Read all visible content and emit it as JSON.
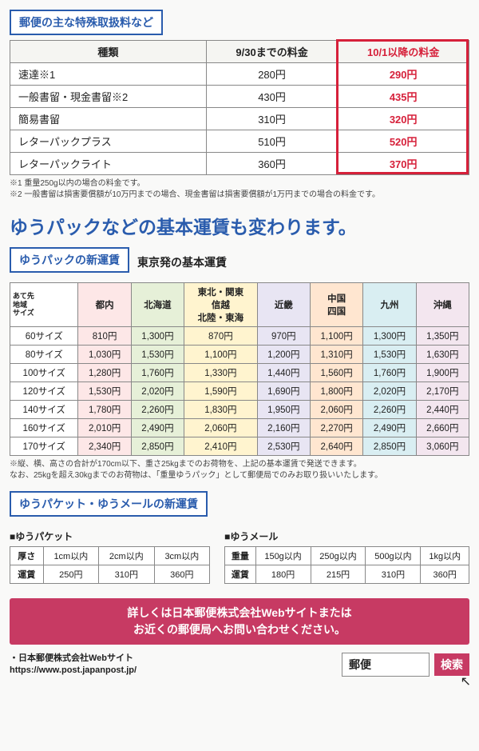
{
  "section1": {
    "title": "郵便の主な特殊取扱料など",
    "headers": [
      "種類",
      "9/30までの料金",
      "10/1以降の料金"
    ],
    "rows": [
      {
        "label": "速達※1",
        "old": "280円",
        "new": "290円"
      },
      {
        "label": "一般書留・現金書留※2",
        "old": "430円",
        "new": "435円"
      },
      {
        "label": "簡易書留",
        "old": "310円",
        "new": "320円"
      },
      {
        "label": "レターパックプラス",
        "old": "510円",
        "new": "520円"
      },
      {
        "label": "レターパックライト",
        "old": "360円",
        "new": "370円"
      }
    ],
    "note1": "※1 重量250g以内の場合の料金です。",
    "note2": "※2 一般書留は損害要償額が10万円までの場合、現金書留は損害要償額が1万円までの場合の料金です。"
  },
  "headline": "ゆうパックなどの基本運賃も変わります。",
  "section2": {
    "title": "ゆうパックの新運賃",
    "caption": "東京発の基本運賃",
    "corner_top": "あて先\n地域",
    "corner_bottom": "サイズ",
    "cols": [
      "都内",
      "北海道",
      "東北・関東\n信越\n北陸・東海",
      "近畿",
      "中国\n四国",
      "九州",
      "沖縄"
    ],
    "col_bg": [
      "#fde7e7",
      "#e6f0d8",
      "#fff4cf",
      "#e8e5f3",
      "#ffe6d0",
      "#d9eef2",
      "#f3e6ef"
    ],
    "sizes": [
      "60サイズ",
      "80サイズ",
      "100サイズ",
      "120サイズ",
      "140サイズ",
      "160サイズ",
      "170サイズ"
    ],
    "data": [
      [
        "810円",
        "1,300円",
        "870円",
        "970円",
        "1,100円",
        "1,300円",
        "1,350円"
      ],
      [
        "1,030円",
        "1,530円",
        "1,100円",
        "1,200円",
        "1,310円",
        "1,530円",
        "1,630円"
      ],
      [
        "1,280円",
        "1,760円",
        "1,330円",
        "1,440円",
        "1,560円",
        "1,760円",
        "1,900円"
      ],
      [
        "1,530円",
        "2,020円",
        "1,590円",
        "1,690円",
        "1,800円",
        "2,020円",
        "2,170円"
      ],
      [
        "1,780円",
        "2,260円",
        "1,830円",
        "1,950円",
        "2,060円",
        "2,260円",
        "2,440円"
      ],
      [
        "2,010円",
        "2,490円",
        "2,060円",
        "2,160円",
        "2,270円",
        "2,490円",
        "2,660円"
      ],
      [
        "2,340円",
        "2,850円",
        "2,410円",
        "2,530円",
        "2,640円",
        "2,850円",
        "3,060円"
      ]
    ],
    "note1": "※縦、横、高さの合計が170cm以下、重さ25kgまでのお荷物を、上記の基本運賃で発送できます。",
    "note2": "なお、25kgを超え30kgまでのお荷物は、「重量ゆうパック」として郵便局でのみお取り扱いいたします。"
  },
  "section3": {
    "title": "ゆうパケット・ゆうメールの新運賃",
    "packet": {
      "name": "■ゆうパケット",
      "row1label": "厚さ",
      "row1": [
        "1cm以内",
        "2cm以内",
        "3cm以内"
      ],
      "row2label": "運賃",
      "row2": [
        "250円",
        "310円",
        "360円"
      ]
    },
    "mail": {
      "name": "■ゆうメール",
      "row1label": "重量",
      "row1": [
        "150g以内",
        "250g以内",
        "500g以内",
        "1kg以内"
      ],
      "row2label": "運賃",
      "row2": [
        "180円",
        "215円",
        "310円",
        "360円"
      ]
    }
  },
  "banner": {
    "line1": "詳しくは日本郵便株式会社Webサイトまたは",
    "line2": "お近くの郵便局へお問い合わせください。"
  },
  "footer": {
    "label": "・日本郵便株式会社Webサイト",
    "url": "https://www.post.japanpost.jp/",
    "search_value": "郵便",
    "search_btn": "検索"
  }
}
